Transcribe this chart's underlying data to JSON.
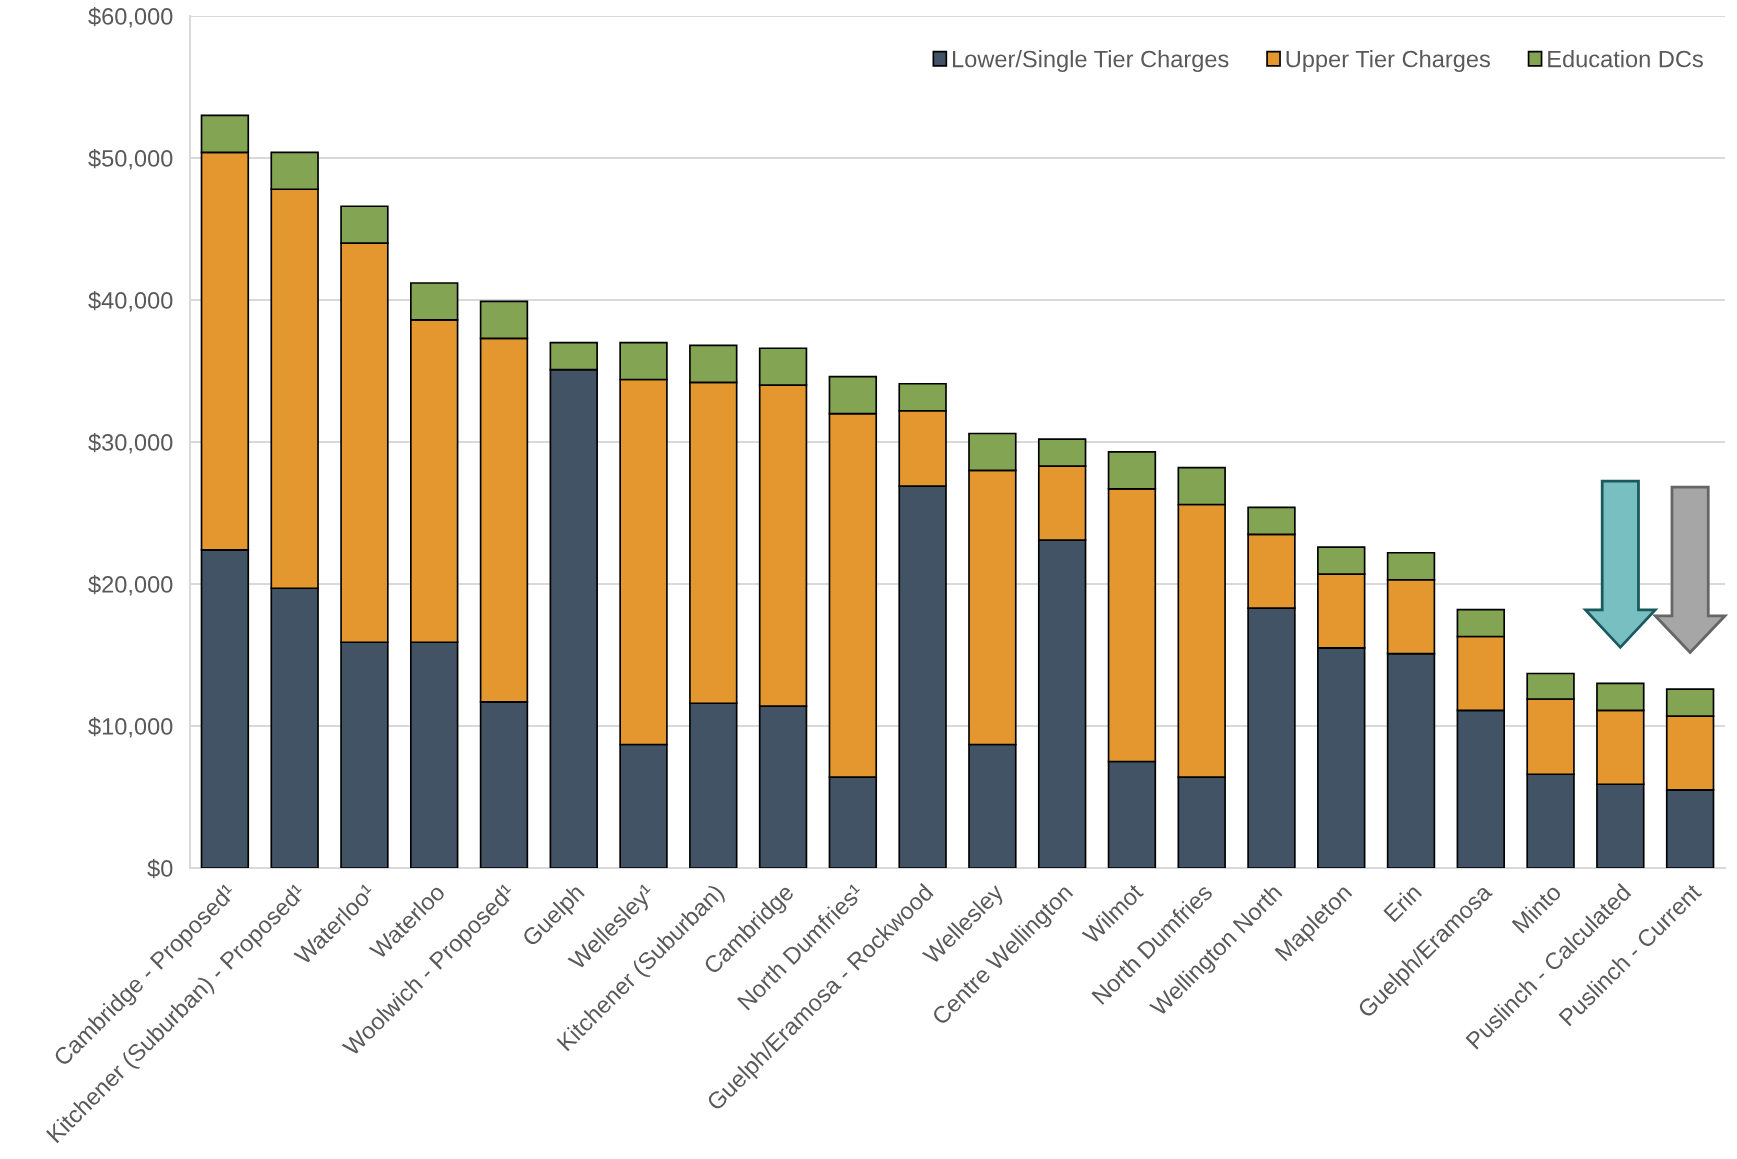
{
  "chart_data": {
    "type": "bar",
    "stacked": true,
    "categories": [
      "Cambridge - Proposed¹",
      "Kitchener (Suburban) - Proposed¹",
      "Waterloo¹",
      "Waterloo",
      "Woolwich - Proposed¹",
      "Guelph",
      "Wellesley¹",
      "Kitchener (Suburban)",
      "Cambridge",
      "North Dumfries¹",
      "Guelph/Eramosa - Rockwood",
      "Wellesley",
      "Centre Wellington",
      "Wilmot",
      "North Dumfries",
      "Wellington North",
      "Mapleton",
      "Erin",
      "Guelph/Eramosa",
      "Minto",
      "Puslinch - Calculated",
      "Puslinch - Current"
    ],
    "series": [
      {
        "name": "Lower/Single Tier Charges",
        "color": "#415364",
        "values": [
          22400,
          19700,
          15900,
          15900,
          11700,
          35100,
          8700,
          11600,
          11400,
          6400,
          26900,
          8700,
          23100,
          7500,
          6400,
          18300,
          15500,
          15100,
          11100,
          6600,
          5900,
          5500
        ]
      },
      {
        "name": "Upper Tier Charges",
        "color": "#e3972e",
        "values": [
          28000,
          28100,
          28100,
          22700,
          25600,
          null,
          25700,
          22600,
          22600,
          25600,
          5300,
          19300,
          5200,
          19200,
          19200,
          5200,
          5200,
          5200,
          5200,
          5300,
          5200,
          5200
        ]
      },
      {
        "name": "Education DCs",
        "color": "#83a553",
        "values": [
          2600,
          2600,
          2600,
          2600,
          2600,
          1900,
          2600,
          2600,
          2600,
          2600,
          1900,
          2600,
          1900,
          2600,
          2600,
          1900,
          1900,
          1900,
          1900,
          1800,
          1900,
          1900
        ]
      }
    ],
    "ylim": [
      0,
      60000
    ],
    "yticks": [
      {
        "value": 0,
        "label": "$0"
      },
      {
        "value": 10000,
        "label": "$10,000"
      },
      {
        "value": 20000,
        "label": "$20,000"
      },
      {
        "value": 30000,
        "label": "$30,000"
      },
      {
        "value": 40000,
        "label": "$40,000"
      },
      {
        "value": 50000,
        "label": "$50,000"
      },
      {
        "value": 60000,
        "label": "$60,000"
      }
    ],
    "grid": "y",
    "legend": "top right"
  }
}
